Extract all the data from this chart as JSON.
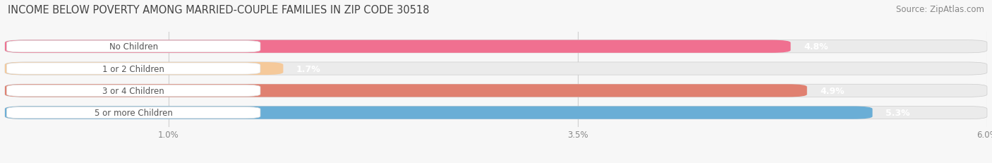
{
  "title": "INCOME BELOW POVERTY AMONG MARRIED-COUPLE FAMILIES IN ZIP CODE 30518",
  "source": "Source: ZipAtlas.com",
  "categories": [
    "No Children",
    "1 or 2 Children",
    "3 or 4 Children",
    "5 or more Children"
  ],
  "values": [
    4.8,
    1.7,
    4.9,
    5.3
  ],
  "bar_colors": [
    "#f07090",
    "#f5c99a",
    "#e08070",
    "#6aaed6"
  ],
  "bar_bg_color": "#ebebeb",
  "xlim": [
    0,
    6.0
  ],
  "xticks": [
    1.0,
    3.5,
    6.0
  ],
  "xticklabels": [
    "1.0%",
    "3.5%",
    "6.0%"
  ],
  "title_fontsize": 10.5,
  "source_fontsize": 8.5,
  "value_label_fontsize": 9,
  "category_fontsize": 8.5,
  "background_color": "#f7f7f7",
  "grid_color": "#d0d0d0",
  "category_text_color": "#555555",
  "value_text_color": "white",
  "tick_label_color": "#888888"
}
